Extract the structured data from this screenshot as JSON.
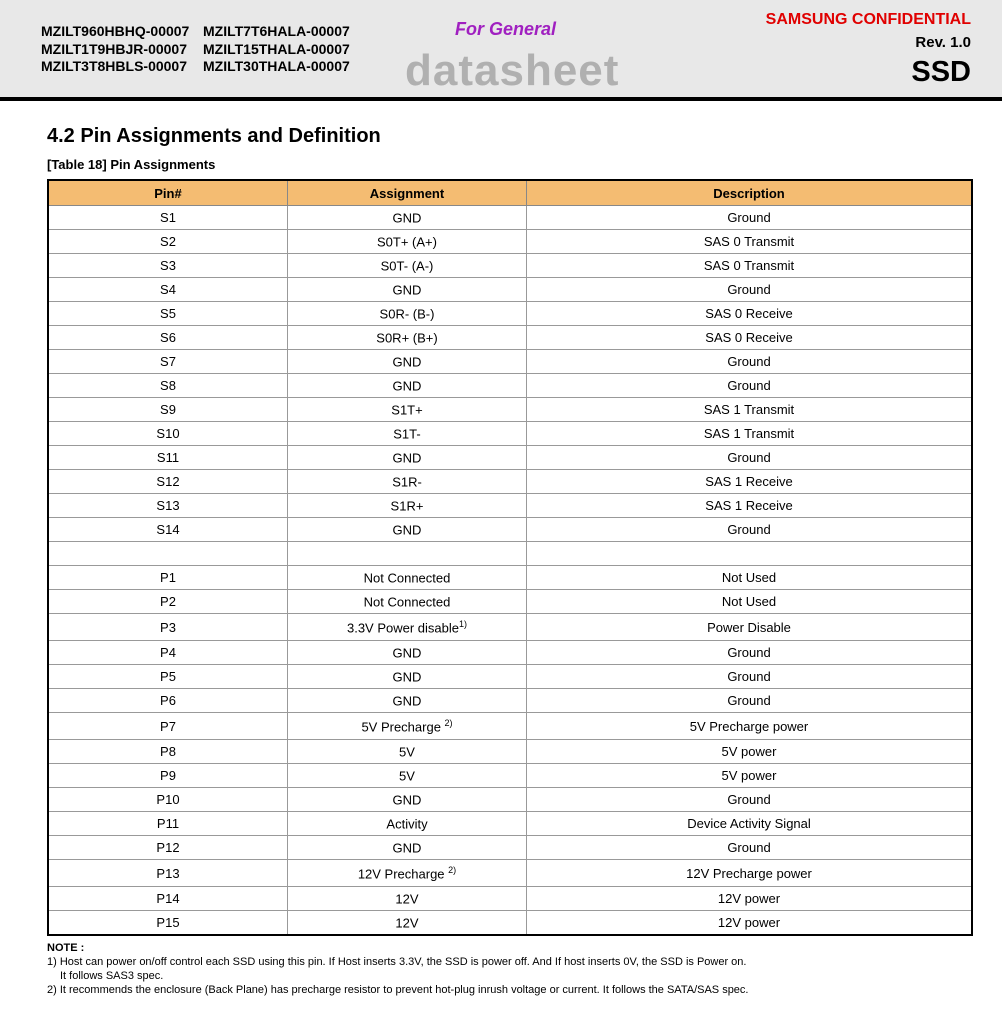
{
  "header": {
    "models": [
      "MZILT960HBHQ-00007",
      "MZILT7T6HALA-00007",
      "MZILT1T9HBJR-00007",
      "MZILT15THALA-00007",
      "MZILT3T8HBLS-00007",
      "MZILT30THALA-00007"
    ],
    "for_general": "For General",
    "datasheet": "datasheet",
    "confidential": "SAMSUNG CONFIDENTIAL",
    "rev": "Rev. 1.0",
    "product": "SSD"
  },
  "section_title": "4.2  Pin Assignments and Definition",
  "table_caption": "[Table 18] Pin Assignments",
  "columns": [
    "Pin#",
    "Assignment",
    "Description"
  ],
  "rows": [
    {
      "pin": "S1",
      "assignment": "GND",
      "sup": "",
      "description": "Ground"
    },
    {
      "pin": "S2",
      "assignment": "S0T+ (A+)",
      "sup": "",
      "description": "SAS 0 Transmit"
    },
    {
      "pin": "S3",
      "assignment": "S0T- (A-)",
      "sup": "",
      "description": "SAS 0 Transmit"
    },
    {
      "pin": "S4",
      "assignment": "GND",
      "sup": "",
      "description": "Ground"
    },
    {
      "pin": "S5",
      "assignment": "S0R- (B-)",
      "sup": "",
      "description": "SAS 0 Receive"
    },
    {
      "pin": "S6",
      "assignment": "S0R+ (B+)",
      "sup": "",
      "description": "SAS 0 Receive"
    },
    {
      "pin": "S7",
      "assignment": "GND",
      "sup": "",
      "description": "Ground"
    },
    {
      "pin": "S8",
      "assignment": "GND",
      "sup": "",
      "description": "Ground"
    },
    {
      "pin": "S9",
      "assignment": "S1T+",
      "sup": "",
      "description": "SAS 1 Transmit"
    },
    {
      "pin": "S10",
      "assignment": "S1T-",
      "sup": "",
      "description": "SAS 1 Transmit"
    },
    {
      "pin": "S11",
      "assignment": "GND",
      "sup": "",
      "description": "Ground"
    },
    {
      "pin": "S12",
      "assignment": "S1R-",
      "sup": "",
      "description": "SAS 1 Receive"
    },
    {
      "pin": "S13",
      "assignment": "S1R+",
      "sup": "",
      "description": "SAS 1 Receive"
    },
    {
      "pin": "S14",
      "assignment": "GND",
      "sup": "",
      "description": "Ground"
    },
    {
      "pin": "",
      "assignment": "",
      "sup": "",
      "description": ""
    },
    {
      "pin": "P1",
      "assignment": "Not Connected",
      "sup": "",
      "description": "Not Used"
    },
    {
      "pin": "P2",
      "assignment": "Not Connected",
      "sup": "",
      "description": "Not Used"
    },
    {
      "pin": "P3",
      "assignment": "3.3V Power disable",
      "sup": "1)",
      "description": "Power Disable"
    },
    {
      "pin": "P4",
      "assignment": "GND",
      "sup": "",
      "description": "Ground"
    },
    {
      "pin": "P5",
      "assignment": "GND",
      "sup": "",
      "description": "Ground"
    },
    {
      "pin": "P6",
      "assignment": "GND",
      "sup": "",
      "description": "Ground"
    },
    {
      "pin": "P7",
      "assignment": "5V Precharge ",
      "sup": "2)",
      "description": "5V Precharge power"
    },
    {
      "pin": "P8",
      "assignment": "5V",
      "sup": "",
      "description": "5V power"
    },
    {
      "pin": "P9",
      "assignment": "5V",
      "sup": "",
      "description": "5V power"
    },
    {
      "pin": "P10",
      "assignment": "GND",
      "sup": "",
      "description": "Ground"
    },
    {
      "pin": "P11",
      "assignment": "Activity",
      "sup": "",
      "description": "Device Activity Signal"
    },
    {
      "pin": "P12",
      "assignment": "GND",
      "sup": "",
      "description": "Ground"
    },
    {
      "pin": "P13",
      "assignment": "12V Precharge ",
      "sup": "2)",
      "description": "12V Precharge power"
    },
    {
      "pin": "P14",
      "assignment": "12V",
      "sup": "",
      "description": "12V power"
    },
    {
      "pin": "P15",
      "assignment": "12V",
      "sup": "",
      "description": "12V power"
    }
  ],
  "notes": {
    "title": "NOTE :",
    "lines": [
      "1) Host can power on/off control each SSD using this pin. If Host inserts 3.3V, the SSD is power off. And If host inserts 0V, the SSD is Power on.",
      "    It follows SAS3 spec.",
      "2) It recommends the enclosure (Back Plane) has precharge resistor to prevent hot-plug inrush voltage or current. It follows the SATA/SAS spec."
    ]
  }
}
